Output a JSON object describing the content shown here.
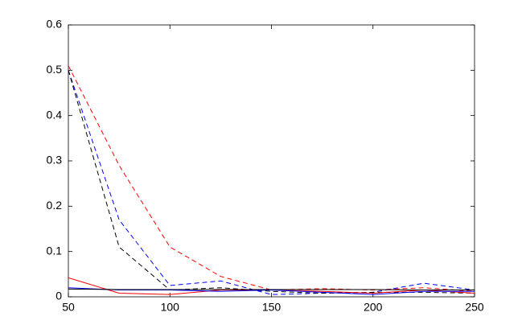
{
  "chart_data": {
    "type": "line",
    "x": [
      50,
      75,
      100,
      125,
      150,
      175,
      200,
      225,
      250
    ],
    "series": [
      {
        "color": "#ff0000",
        "dashed": true,
        "values": [
          0.51,
          0.29,
          0.11,
          0.045,
          0.015,
          0.018,
          0.015,
          0.02,
          0.012
        ]
      },
      {
        "color": "#0000ff",
        "dashed": true,
        "values": [
          0.5,
          0.17,
          0.025,
          0.035,
          0.005,
          0.008,
          0.01,
          0.03,
          0.015
        ]
      },
      {
        "color": "#000000",
        "dashed": true,
        "values": [
          0.5,
          0.11,
          0.015,
          0.02,
          0.012,
          0.008,
          0.01,
          0.01,
          0.008
        ]
      },
      {
        "color": "#ff0000",
        "dashed": false,
        "values": [
          0.042,
          0.008,
          0.005,
          0.015,
          0.015,
          0.012,
          0.008,
          0.015,
          0.008
        ]
      },
      {
        "color": "#0000ff",
        "dashed": false,
        "values": [
          0.02,
          0.015,
          0.015,
          0.012,
          0.015,
          0.01,
          0.005,
          0.012,
          0.012
        ]
      },
      {
        "color": "#000000",
        "dashed": false,
        "values": [
          0.017,
          0.016,
          0.016,
          0.016,
          0.016,
          0.016,
          0.016,
          0.015,
          0.015
        ]
      }
    ],
    "xlim": [
      50,
      250
    ],
    "xticks": [
      50,
      100,
      150,
      200,
      250
    ],
    "ylim": [
      0,
      0.6
    ],
    "yticks": [
      0,
      0.1,
      0.2,
      0.3,
      0.4,
      0.5,
      0.6
    ],
    "grid": false
  }
}
